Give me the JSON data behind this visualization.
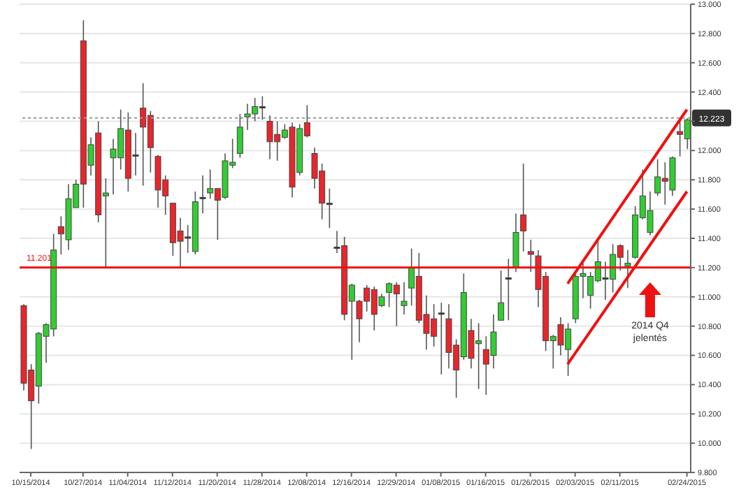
{
  "chart_data": {
    "type": "candlestick",
    "categories": [
      null,
      "10/15/2014",
      null,
      null,
      null,
      null,
      null,
      null,
      "10/27/2014",
      null,
      null,
      null,
      null,
      null,
      "11/04/2014",
      null,
      null,
      null,
      null,
      null,
      "11/12/2014",
      null,
      null,
      null,
      null,
      null,
      "11/20/2014",
      null,
      null,
      null,
      null,
      null,
      "11/28/2014",
      null,
      null,
      null,
      null,
      null,
      "12/08/2014",
      null,
      null,
      null,
      null,
      null,
      "12/16/2014",
      null,
      null,
      null,
      null,
      null,
      "12/29/2014",
      null,
      null,
      null,
      null,
      null,
      "01/08/2015",
      null,
      null,
      null,
      null,
      null,
      "01/16/2015",
      null,
      null,
      null,
      null,
      null,
      "01/26/2015",
      null,
      null,
      null,
      null,
      null,
      "02/03/2015",
      null,
      null,
      null,
      null,
      null,
      "02/11/2015",
      null,
      null,
      null,
      null,
      null,
      null,
      null,
      null,
      "02/24/2015"
    ],
    "ohlc": [
      [
        10.94,
        10.95,
        10.36,
        10.41
      ],
      [
        10.5,
        10.54,
        9.96,
        10.29
      ],
      [
        10.39,
        10.76,
        10.27,
        10.75
      ],
      [
        10.73,
        10.82,
        10.55,
        10.81
      ],
      [
        10.78,
        11.43,
        10.73,
        11.32
      ],
      [
        11.48,
        11.55,
        11.29,
        11.43
      ],
      [
        11.39,
        11.77,
        11.32,
        11.67
      ],
      [
        11.61,
        11.8,
        11.61,
        11.77
      ],
      [
        12.75,
        12.89,
        11.61,
        11.77
      ],
      [
        11.9,
        12.09,
        11.83,
        12.04
      ],
      [
        12.12,
        12.2,
        11.51,
        11.56
      ],
      [
        11.69,
        11.81,
        11.2,
        11.71
      ],
      [
        11.95,
        12.08,
        11.7,
        12.01
      ],
      [
        11.95,
        12.28,
        11.87,
        12.15
      ],
      [
        12.14,
        12.26,
        11.72,
        11.81
      ],
      [
        11.97,
        12.12,
        11.83,
        11.97
      ],
      [
        12.29,
        12.46,
        11.76,
        12.16
      ],
      [
        12.24,
        12.27,
        11.85,
        12.02
      ],
      [
        11.96,
        11.97,
        11.61,
        11.73
      ],
      [
        11.8,
        11.83,
        11.56,
        11.69
      ],
      [
        11.64,
        11.64,
        11.28,
        11.37
      ],
      [
        11.45,
        11.54,
        11.2,
        11.38
      ],
      [
        11.41,
        11.49,
        11.3,
        11.41
      ],
      [
        11.31,
        11.72,
        11.29,
        11.65
      ],
      [
        11.68,
        11.83,
        11.57,
        11.68
      ],
      [
        11.71,
        11.87,
        11.67,
        11.74
      ],
      [
        11.74,
        11.74,
        11.39,
        11.66
      ],
      [
        11.68,
        11.98,
        11.67,
        11.93
      ],
      [
        11.9,
        12.08,
        11.88,
        11.92
      ],
      [
        11.98,
        12.25,
        11.95,
        12.16
      ],
      [
        12.23,
        12.32,
        12.14,
        12.25
      ],
      [
        12.25,
        12.36,
        12.2,
        12.3
      ],
      [
        12.3,
        12.37,
        12.21,
        12.3
      ],
      [
        12.2,
        12.24,
        11.94,
        12.06
      ],
      [
        12.11,
        12.2,
        11.93,
        12.06
      ],
      [
        12.09,
        12.18,
        12.08,
        12.14
      ],
      [
        12.16,
        12.19,
        11.68,
        11.75
      ],
      [
        11.85,
        12.18,
        11.83,
        12.15
      ],
      [
        12.19,
        12.31,
        12.09,
        12.1
      ],
      [
        11.98,
        12.02,
        11.74,
        11.81
      ],
      [
        11.86,
        11.91,
        11.53,
        11.64
      ],
      [
        11.64,
        11.74,
        11.47,
        11.64
      ],
      [
        11.34,
        11.45,
        11.3,
        11.34
      ],
      [
        11.35,
        11.41,
        10.84,
        10.88
      ],
      [
        10.97,
        11.09,
        10.57,
        11.08
      ],
      [
        10.97,
        10.98,
        10.69,
        10.85
      ],
      [
        11.06,
        11.08,
        10.9,
        10.97
      ],
      [
        11.05,
        11.07,
        10.77,
        10.88
      ],
      [
        10.94,
        11.02,
        10.93,
        11.0
      ],
      [
        11.03,
        11.1,
        10.93,
        11.09
      ],
      [
        11.08,
        11.1,
        10.8,
        11.02
      ],
      [
        10.94,
        11.1,
        10.88,
        10.97
      ],
      [
        11.06,
        11.33,
        10.94,
        11.2
      ],
      [
        11.14,
        11.3,
        10.82,
        10.84
      ],
      [
        10.88,
        11.01,
        10.64,
        10.75
      ],
      [
        10.85,
        10.95,
        10.66,
        10.73
      ],
      [
        10.89,
        10.96,
        10.47,
        10.89
      ],
      [
        10.85,
        10.95,
        10.51,
        10.62
      ],
      [
        10.67,
        10.71,
        10.31,
        10.5
      ],
      [
        10.59,
        11.16,
        10.57,
        11.03
      ],
      [
        10.77,
        10.85,
        10.51,
        10.58
      ],
      [
        10.68,
        10.82,
        10.37,
        10.7
      ],
      [
        10.64,
        10.73,
        10.33,
        10.54
      ],
      [
        10.6,
        10.88,
        10.51,
        10.76
      ],
      [
        10.84,
        11.18,
        10.84,
        10.96
      ],
      [
        11.13,
        11.26,
        10.84,
        11.13
      ],
      [
        11.2,
        11.57,
        11.17,
        11.44
      ],
      [
        11.56,
        11.91,
        11.31,
        11.45
      ],
      [
        11.31,
        11.39,
        11.17,
        11.29
      ],
      [
        11.28,
        11.32,
        10.93,
        11.05
      ],
      [
        11.14,
        11.17,
        10.63,
        10.7
      ],
      [
        10.7,
        10.74,
        10.51,
        10.73
      ],
      [
        10.81,
        10.86,
        10.6,
        10.67
      ],
      [
        10.64,
        10.82,
        10.46,
        10.78
      ],
      [
        10.85,
        11.18,
        10.82,
        11.14
      ],
      [
        11.14,
        11.23,
        10.99,
        11.16
      ],
      [
        11.01,
        11.17,
        10.92,
        11.14
      ],
      [
        11.11,
        11.38,
        11.1,
        11.24
      ],
      [
        11.13,
        11.24,
        10.98,
        11.13
      ],
      [
        11.12,
        11.36,
        11.03,
        11.29
      ],
      [
        11.35,
        11.36,
        11.18,
        11.27
      ],
      [
        11.21,
        11.32,
        11.06,
        11.23
      ],
      [
        11.27,
        11.62,
        11.26,
        11.56
      ],
      [
        11.54,
        11.87,
        11.53,
        11.69
      ],
      [
        11.44,
        11.72,
        11.42,
        11.59
      ],
      [
        11.71,
        11.94,
        11.69,
        11.82
      ],
      [
        11.81,
        11.92,
        11.63,
        11.79
      ],
      [
        11.73,
        11.96,
        11.69,
        11.95
      ],
      [
        12.13,
        12.2,
        11.96,
        12.11
      ],
      [
        12.08,
        12.22,
        12.01,
        12.21
      ]
    ],
    "colors": [
      "#e8262b",
      "#e8262b",
      "#33cc33",
      "#33cc33",
      "#33cc33",
      "#e8262b",
      "#33cc33",
      "#33cc33",
      "#e8262b",
      "#33cc33",
      "#e8262b",
      "#33cc33",
      "#33cc33",
      "#33cc33",
      "#e8262b",
      "#333333",
      "#e8262b",
      "#e8262b",
      "#e8262b",
      "#e8262b",
      "#e8262b",
      "#e8262b",
      "#333333",
      "#33cc33",
      "#333333",
      "#33cc33",
      "#e8262b",
      "#33cc33",
      "#33cc33",
      "#33cc33",
      "#33cc33",
      "#33cc33",
      "#333333",
      "#e8262b",
      "#e8262b",
      "#33cc33",
      "#e8262b",
      "#33cc33",
      "#e8262b",
      "#e8262b",
      "#e8262b",
      "#333333",
      "#333333",
      "#e8262b",
      "#33cc33",
      "#e8262b",
      "#e8262b",
      "#e8262b",
      "#33cc33",
      "#33cc33",
      "#e8262b",
      "#33cc33",
      "#33cc33",
      "#e8262b",
      "#e8262b",
      "#e8262b",
      "#333333",
      "#e8262b",
      "#e8262b",
      "#33cc33",
      "#e8262b",
      "#33cc33",
      "#e8262b",
      "#33cc33",
      "#33cc33",
      "#333333",
      "#33cc33",
      "#e8262b",
      "#e8262b",
      "#e8262b",
      "#e8262b",
      "#33cc33",
      "#e8262b",
      "#33cc33",
      "#33cc33",
      "#33cc33",
      "#33cc33",
      "#33cc33",
      "#333333",
      "#33cc33",
      "#e8262b",
      "#33cc33",
      "#33cc33",
      "#33cc33",
      "#33cc33",
      "#33cc33",
      "#e8262b",
      "#33cc33",
      "#e8262b",
      "#33cc33"
    ],
    "series": [
      {
        "type": "line",
        "values": [
          null,
          null,
          null,
          null,
          null,
          null,
          null,
          null,
          null,
          null,
          null,
          null,
          null,
          null,
          null,
          null,
          null,
          null,
          null,
          null,
          null,
          null,
          null,
          null,
          null,
          null,
          null,
          null,
          null,
          null,
          null,
          null,
          null,
          null,
          null,
          null,
          null,
          null,
          null,
          null,
          null,
          null,
          null,
          null,
          null,
          null,
          null,
          null,
          null,
          null,
          null,
          null,
          null,
          null,
          null,
          null,
          null,
          null,
          null,
          null,
          null,
          null,
          null,
          null,
          null,
          null,
          null,
          null,
          null,
          null,
          null,
          null,
          null,
          11.09,
          null,
          null,
          null,
          null,
          null,
          null,
          null,
          null,
          null,
          null,
          null,
          null,
          null,
          null,
          null,
          12.28
        ],
        "color": "#ee1111"
      },
      {
        "type": "line",
        "values": [
          null,
          null,
          null,
          null,
          null,
          null,
          null,
          null,
          null,
          null,
          null,
          null,
          null,
          null,
          null,
          null,
          null,
          null,
          null,
          null,
          null,
          null,
          null,
          null,
          null,
          null,
          null,
          null,
          null,
          null,
          null,
          null,
          null,
          null,
          null,
          null,
          null,
          null,
          null,
          null,
          null,
          null,
          null,
          null,
          null,
          null,
          null,
          null,
          null,
          null,
          null,
          null,
          null,
          null,
          null,
          null,
          null,
          null,
          null,
          null,
          null,
          null,
          null,
          null,
          null,
          null,
          null,
          null,
          null,
          null,
          null,
          null,
          null,
          10.54,
          null,
          null,
          null,
          null,
          null,
          null,
          null,
          null,
          null,
          null,
          null,
          null,
          null,
          null,
          null,
          11.72
        ],
        "color": "#ee1111"
      }
    ],
    "ylim": [
      9.8,
      13
    ],
    "yticks": [
      {
        "value": 9.8,
        "label": "9.800"
      },
      {
        "value": 10,
        "label": "10.000"
      },
      {
        "value": 10.2,
        "label": "10.200"
      },
      {
        "value": 10.4,
        "label": "10.400"
      },
      {
        "value": 10.6,
        "label": "10.600"
      },
      {
        "value": 10.8,
        "label": "10.800"
      },
      {
        "value": 11,
        "label": "11.000"
      },
      {
        "value": 11.2,
        "label": "11.200"
      },
      {
        "value": 11.4,
        "label": "11.400"
      },
      {
        "value": 11.6,
        "label": "11.600"
      },
      {
        "value": 11.8,
        "label": "11.800"
      },
      {
        "value": 12,
        "label": "12.000"
      },
      {
        "value": 12.2,
        "label": null
      },
      {
        "value": 12.4,
        "label": "12.400"
      },
      {
        "value": 12.6,
        "label": "12.600"
      },
      {
        "value": 12.8,
        "label": "12.800"
      },
      {
        "value": 13,
        "label": "13.000"
      }
    ],
    "grid": "y",
    "ref_lines": [
      {
        "axis": "y",
        "value": 11.201,
        "label": "11.201",
        "color": "#ee1111",
        "line_style": "solid"
      },
      {
        "axis": "y",
        "value": 12.223,
        "label": "12.223",
        "color": "#999999",
        "line_style": "dotted"
      }
    ],
    "annotations": [
      "2014 Q4 jelentés"
    ]
  }
}
